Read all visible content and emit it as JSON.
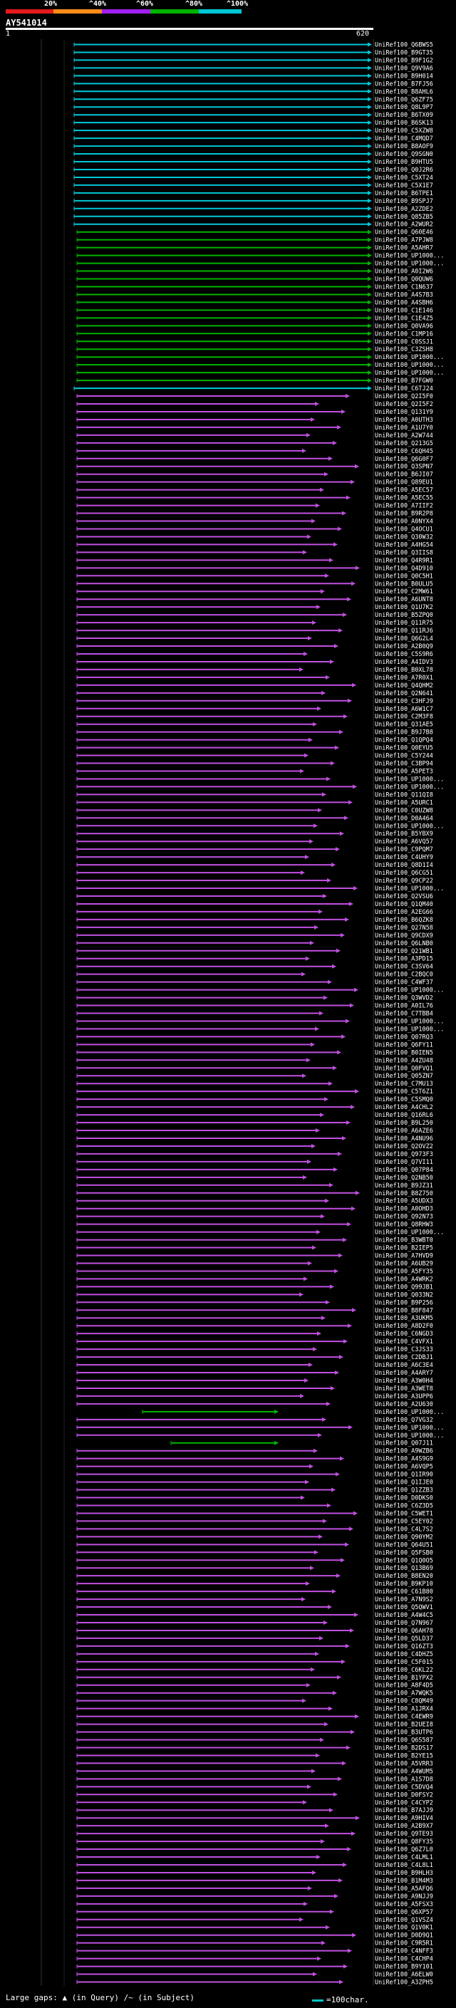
{
  "scale_labels": [
    "20%",
    "^40%",
    "^60%",
    "^80%",
    "^100%"
  ],
  "scale_colors": {
    "red": "#e41a1c",
    "orange": "#ff8c1a",
    "purple": "#a020f0",
    "green": "#00b400",
    "cyan": "#00c8d8"
  },
  "query": {
    "id": "AY541014",
    "start": "1",
    "end": "620"
  },
  "hits": [
    {
      "name": "UniRef100_Q6BWS5",
      "color": "cyan"
    },
    {
      "name": "UniRef100_B9GT35",
      "color": "cyan"
    },
    {
      "name": "UniRef100_B9F1G2",
      "color": "cyan"
    },
    {
      "name": "UniRef100_Q9V9A6",
      "color": "cyan"
    },
    {
      "name": "UniRef100_B9H014",
      "color": "cyan"
    },
    {
      "name": "UniRef100_B7FJ56",
      "color": "cyan"
    },
    {
      "name": "UniRef100_B8AHL6",
      "color": "cyan"
    },
    {
      "name": "UniRef100_Q6ZF75",
      "color": "cyan"
    },
    {
      "name": "UniRef100_Q8L9P7",
      "color": "cyan"
    },
    {
      "name": "UniRef100_B6TX09",
      "color": "cyan"
    },
    {
      "name": "UniRef100_B6SK13",
      "color": "cyan"
    },
    {
      "name": "UniRef100_C5XZW8",
      "color": "cyan"
    },
    {
      "name": "UniRef100_C4MQD7",
      "color": "cyan"
    },
    {
      "name": "UniRef100_B8AOF9",
      "color": "cyan"
    },
    {
      "name": "UniRef100_Q9SGN0",
      "color": "cyan"
    },
    {
      "name": "UniRef100_B9HTU5",
      "color": "cyan"
    },
    {
      "name": "UniRef100_Q0J2R6",
      "color": "cyan"
    },
    {
      "name": "UniRef100_C5XT24",
      "color": "cyan"
    },
    {
      "name": "UniRef100_C5X1E7",
      "color": "cyan"
    },
    {
      "name": "UniRef100_B6TPE1",
      "color": "cyan"
    },
    {
      "name": "UniRef100_B9SPJ7",
      "color": "cyan"
    },
    {
      "name": "UniRef100_A2ZDE2",
      "color": "cyan"
    },
    {
      "name": "UniRef100_Q85ZB5",
      "color": "cyan"
    },
    {
      "name": "UniRef100_A2WUR2",
      "color": "cyan"
    },
    {
      "name": "UniRef100_Q60E46",
      "color": "green"
    },
    {
      "name": "UniRef100_A7PJW8",
      "color": "green"
    },
    {
      "name": "UniRef100_A5AHR7",
      "color": "green"
    },
    {
      "name": "UniRef100_UP1000...",
      "color": "green"
    },
    {
      "name": "UniRef100_UP1000...",
      "color": "green"
    },
    {
      "name": "UniRef100_A0I2W6",
      "color": "green"
    },
    {
      "name": "UniRef100_Q0QUW6",
      "color": "green"
    },
    {
      "name": "UniRef100_C1N637",
      "color": "green"
    },
    {
      "name": "UniRef100_A4S7B3",
      "color": "green"
    },
    {
      "name": "UniRef100_A4SBH6",
      "color": "green"
    },
    {
      "name": "UniRef100_C1E146",
      "color": "green"
    },
    {
      "name": "UniRef100_C1E4Z5",
      "color": "green"
    },
    {
      "name": "UniRef100_Q0VA96",
      "color": "green"
    },
    {
      "name": "UniRef100_C1MP16",
      "color": "green"
    },
    {
      "name": "UniRef100_C0SSJ1",
      "color": "green"
    },
    {
      "name": "UniRef100_C3ZSH8",
      "color": "green"
    },
    {
      "name": "UniRef100_UP1000...",
      "color": "green"
    },
    {
      "name": "UniRef100_UP1000...",
      "color": "green"
    },
    {
      "name": "UniRef100_UP1000...",
      "color": "green"
    },
    {
      "name": "UniRef100_B7FGW0",
      "color": "green"
    },
    {
      "name": "UniRef100_C6TJ24",
      "color": "cyan"
    },
    {
      "name": "UniRef100_Q2I5F0",
      "color": "purple"
    },
    {
      "name": "UniRef100_Q2I5F2",
      "color": "purple"
    },
    {
      "name": "UniRef100_Q131Y9",
      "color": "purple"
    },
    {
      "name": "UniRef100_A0UTH3",
      "color": "purple"
    },
    {
      "name": "UniRef100_A1U7Y0",
      "color": "purple"
    },
    {
      "name": "UniRef100_A2W744",
      "color": "purple"
    },
    {
      "name": "UniRef100_Q213G5",
      "color": "purple"
    },
    {
      "name": "UniRef100_C6QH45",
      "color": "purple"
    },
    {
      "name": "UniRef100_Q6G0F7",
      "color": "purple"
    },
    {
      "name": "UniRef100_Q3SPN7",
      "color": "purple"
    },
    {
      "name": "UniRef100_B6JI07",
      "color": "purple"
    },
    {
      "name": "UniRef100_Q89EU1",
      "color": "purple"
    },
    {
      "name": "UniRef100_A5EC57",
      "color": "purple"
    },
    {
      "name": "UniRef100_A5EC55",
      "color": "purple"
    },
    {
      "name": "UniRef100_A7IIF2",
      "color": "purple"
    },
    {
      "name": "UniRef100_B9R2P8",
      "color": "purple"
    },
    {
      "name": "UniRef100_A0NYX4",
      "color": "purple"
    },
    {
      "name": "UniRef100_Q4OCU1",
      "color": "purple"
    },
    {
      "name": "UniRef100_Q30W32",
      "color": "purple"
    },
    {
      "name": "UniRef100_A4HG54",
      "color": "purple"
    },
    {
      "name": "UniRef100_Q3IIS8",
      "color": "purple"
    },
    {
      "name": "UniRef100_Q4R9R1",
      "color": "purple"
    },
    {
      "name": "UniRef100_Q4D910",
      "color": "purple"
    },
    {
      "name": "UniRef100_Q0C5H1",
      "color": "purple"
    },
    {
      "name": "UniRef100_B0ULU5",
      "color": "purple"
    },
    {
      "name": "UniRef100_C2MW61",
      "color": "purple"
    },
    {
      "name": "UniRef100_A6UNT8",
      "color": "purple"
    },
    {
      "name": "UniRef100_Q1U7K2",
      "color": "purple"
    },
    {
      "name": "UniRef100_B5ZPQ0",
      "color": "purple"
    },
    {
      "name": "UniRef100_Q11R75",
      "color": "purple"
    },
    {
      "name": "UniRef100_Q11RJ6",
      "color": "purple"
    },
    {
      "name": "UniRef100_Q6G2L4",
      "color": "purple"
    },
    {
      "name": "UniRef100_A2B0Q9",
      "color": "purple"
    },
    {
      "name": "UniRef100_C5S9R6",
      "color": "purple"
    },
    {
      "name": "UniRef100_A4IDV3",
      "color": "purple"
    },
    {
      "name": "UniRef100_B0XL78",
      "color": "purple"
    },
    {
      "name": "UniRef100_A7R0X1",
      "color": "purple"
    },
    {
      "name": "UniRef100_Q4QHM2",
      "color": "purple"
    },
    {
      "name": "UniRef100_Q2N641",
      "color": "purple"
    },
    {
      "name": "UniRef100_C3HFJ9",
      "color": "purple"
    },
    {
      "name": "UniRef100_A6W1C7",
      "color": "purple"
    },
    {
      "name": "UniRef100_C2M3F8",
      "color": "purple"
    },
    {
      "name": "UniRef100_Q31AE5",
      "color": "purple"
    },
    {
      "name": "UniRef100_B9J7B8",
      "color": "purple"
    },
    {
      "name": "UniRef100_Q1QPQ4",
      "color": "purple"
    },
    {
      "name": "UniRef100_Q0EYU5",
      "color": "purple"
    },
    {
      "name": "UniRef100_C5Y244",
      "color": "purple"
    },
    {
      "name": "UniRef100_C3BP94",
      "color": "purple"
    },
    {
      "name": "UniRef100_A5PET3",
      "color": "purple"
    },
    {
      "name": "UniRef100_UP1000...",
      "color": "purple"
    },
    {
      "name": "UniRef100_UP1000...",
      "color": "purple"
    },
    {
      "name": "UniRef100_Q11QI8",
      "color": "purple"
    },
    {
      "name": "UniRef100_A5URC1",
      "color": "purple"
    },
    {
      "name": "UniRef100_C0UZW8",
      "color": "purple"
    },
    {
      "name": "UniRef100_D0A464",
      "color": "purple"
    },
    {
      "name": "UniRef100_UP1000...",
      "color": "purple"
    },
    {
      "name": "UniRef100_B5YBX9",
      "color": "purple"
    },
    {
      "name": "UniRef100_A6VQ57",
      "color": "purple"
    },
    {
      "name": "UniRef100_C9PQM7",
      "color": "purple"
    },
    {
      "name": "UniRef100_C4UHY9",
      "color": "purple"
    },
    {
      "name": "UniRef100_Q8D1I4",
      "color": "purple"
    },
    {
      "name": "UniRef100_Q6CG51",
      "color": "purple"
    },
    {
      "name": "UniRef100_Q9CP22",
      "color": "purple"
    },
    {
      "name": "UniRef100_UP1000...",
      "color": "purple"
    },
    {
      "name": "UniRef100_Q2VSU6",
      "color": "purple"
    },
    {
      "name": "UniRef100_Q1QM40",
      "color": "purple"
    },
    {
      "name": "UniRef100_A2EG66",
      "color": "purple"
    },
    {
      "name": "UniRef100_B6QZK8",
      "color": "purple"
    },
    {
      "name": "UniRef100_Q27N58",
      "color": "purple"
    },
    {
      "name": "UniRef100_Q9CDX9",
      "color": "purple"
    },
    {
      "name": "UniRef100_Q6LNB0",
      "color": "purple"
    },
    {
      "name": "UniRef100_Q21WB1",
      "color": "purple"
    },
    {
      "name": "UniRef100_A3PD15",
      "color": "purple"
    },
    {
      "name": "UniRef100_C3SV64",
      "color": "purple"
    },
    {
      "name": "UniRef100_C2BQC0",
      "color": "purple"
    },
    {
      "name": "UniRef100_C4WF37",
      "color": "purple"
    },
    {
      "name": "UniRef100_UP1000...",
      "color": "purple"
    },
    {
      "name": "UniRef100_Q3WVD2",
      "color": "purple"
    },
    {
      "name": "UniRef100_A0IL76",
      "color": "purple"
    },
    {
      "name": "UniRef100_C7TBB4",
      "color": "purple"
    },
    {
      "name": "UniRef100_UP1000...",
      "color": "purple"
    },
    {
      "name": "UniRef100_UP1000...",
      "color": "purple"
    },
    {
      "name": "UniRef100_Q07RQ3",
      "color": "purple"
    },
    {
      "name": "UniRef100_Q6FY11",
      "color": "purple"
    },
    {
      "name": "UniRef100_B0IEN5",
      "color": "purple"
    },
    {
      "name": "UniRef100_A4ZU48",
      "color": "purple"
    },
    {
      "name": "UniRef100_Q0FVQ1",
      "color": "purple"
    },
    {
      "name": "UniRef100_Q05ZN7",
      "color": "purple"
    },
    {
      "name": "UniRef100_C7MU13",
      "color": "purple"
    },
    {
      "name": "UniRef100_C5T6Z1",
      "color": "purple"
    },
    {
      "name": "UniRef100_C5SMQ0",
      "color": "purple"
    },
    {
      "name": "UniRef100_A4CHL2",
      "color": "purple"
    },
    {
      "name": "UniRef100_Q16RL6",
      "color": "purple"
    },
    {
      "name": "UniRef100_B9L250",
      "color": "purple"
    },
    {
      "name": "UniRef100_A6AZE6",
      "color": "purple"
    },
    {
      "name": "UniRef100_A4NU96",
      "color": "purple"
    },
    {
      "name": "UniRef100_Q2OVZ2",
      "color": "purple"
    },
    {
      "name": "UniRef100_Q973F3",
      "color": "purple"
    },
    {
      "name": "UniRef100_Q7VI11",
      "color": "purple"
    },
    {
      "name": "UniRef100_Q07P84",
      "color": "purple"
    },
    {
      "name": "UniRef100_Q2NB50",
      "color": "purple"
    },
    {
      "name": "UniRef100_B9JZ31",
      "color": "purple"
    },
    {
      "name": "UniRef100_B8Z750",
      "color": "purple"
    },
    {
      "name": "UniRef100_A5UDX3",
      "color": "purple"
    },
    {
      "name": "UniRef100_A0OHD3",
      "color": "purple"
    },
    {
      "name": "UniRef100_Q92N73",
      "color": "purple"
    },
    {
      "name": "UniRef100_Q8RHW3",
      "color": "purple"
    },
    {
      "name": "UniRef100_UP1000...",
      "color": "purple"
    },
    {
      "name": "UniRef100_B3WBT0",
      "color": "purple"
    },
    {
      "name": "UniRef100_B2IEP5",
      "color": "purple"
    },
    {
      "name": "UniRef100_A7HVD9",
      "color": "purple"
    },
    {
      "name": "UniRef100_A6UB29",
      "color": "purple"
    },
    {
      "name": "UniRef100_A5FY35",
      "color": "purple"
    },
    {
      "name": "UniRef100_A4WRK2",
      "color": "purple"
    },
    {
      "name": "UniRef100_Q99JB1",
      "color": "purple"
    },
    {
      "name": "UniRef100_Q033N2",
      "color": "purple"
    },
    {
      "name": "UniRef100_B9P256",
      "color": "purple"
    },
    {
      "name": "UniRef100_B8F847",
      "color": "purple"
    },
    {
      "name": "UniRef100_A3UKM5",
      "color": "purple"
    },
    {
      "name": "UniRef100_A8D2F0",
      "color": "purple"
    },
    {
      "name": "UniRef100_C6NGD3",
      "color": "purple"
    },
    {
      "name": "UniRef100_C4VFX1",
      "color": "purple"
    },
    {
      "name": "UniRef100_C3JS33",
      "color": "purple"
    },
    {
      "name": "UniRef100_C2DBJ1",
      "color": "purple"
    },
    {
      "name": "UniRef100_A6C3E4",
      "color": "purple"
    },
    {
      "name": "UniRef100_A4ARY7",
      "color": "purple"
    },
    {
      "name": "UniRef100_A3W0H4",
      "color": "purple"
    },
    {
      "name": "UniRef100_A3WET8",
      "color": "purple"
    },
    {
      "name": "UniRef100_A3UPP6",
      "color": "purple"
    },
    {
      "name": "UniRef100_A2U630",
      "color": "purple"
    },
    {
      "name": "UniRef100_UP1000...",
      "color": "green"
    },
    {
      "name": "UniRef100_Q7VG32",
      "color": "purple"
    },
    {
      "name": "UniRef100_UP1000...",
      "color": "purple"
    },
    {
      "name": "UniRef100_UP1000...",
      "color": "purple"
    },
    {
      "name": "UniRef100_Q07J11",
      "color": "green"
    },
    {
      "name": "UniRef100_A9WZB6",
      "color": "purple"
    },
    {
      "name": "UniRef100_A4S9G9",
      "color": "purple"
    },
    {
      "name": "UniRef100_A6VQP5",
      "color": "purple"
    },
    {
      "name": "UniRef100_Q1IR90",
      "color": "purple"
    },
    {
      "name": "UniRef100_Q1IJE0",
      "color": "purple"
    },
    {
      "name": "UniRef100_Q1ZZB3",
      "color": "purple"
    },
    {
      "name": "UniRef100_D0DKS0",
      "color": "purple"
    },
    {
      "name": "UniRef100_C6Z3D5",
      "color": "purple"
    },
    {
      "name": "UniRef100_C5WET1",
      "color": "purple"
    },
    {
      "name": "UniRef100_C5EY02",
      "color": "purple"
    },
    {
      "name": "UniRef100_C4L7S2",
      "color": "purple"
    },
    {
      "name": "UniRef100_Q90YM2",
      "color": "purple"
    },
    {
      "name": "UniRef100_Q64U51",
      "color": "purple"
    },
    {
      "name": "UniRef100_Q5FSB0",
      "color": "purple"
    },
    {
      "name": "UniRef100_Q1Q0O5",
      "color": "purple"
    },
    {
      "name": "UniRef100_Q13B69",
      "color": "purple"
    },
    {
      "name": "UniRef100_B8EN20",
      "color": "purple"
    },
    {
      "name": "UniRef100_B9KP10",
      "color": "purple"
    },
    {
      "name": "UniRef100_C61B80",
      "color": "purple"
    },
    {
      "name": "UniRef100_A7N9S2",
      "color": "purple"
    },
    {
      "name": "UniRef100_Q5QWV1",
      "color": "purple"
    },
    {
      "name": "UniRef100_A4W4C5",
      "color": "purple"
    },
    {
      "name": "UniRef100_Q7N967",
      "color": "purple"
    },
    {
      "name": "UniRef100_Q6AH78",
      "color": "purple"
    },
    {
      "name": "UniRef100_Q5LD37",
      "color": "purple"
    },
    {
      "name": "UniRef100_Q16ZT3",
      "color": "purple"
    },
    {
      "name": "UniRef100_C4DHZ5",
      "color": "purple"
    },
    {
      "name": "UniRef100_C5F015",
      "color": "purple"
    },
    {
      "name": "UniRef100_C6KL22",
      "color": "purple"
    },
    {
      "name": "UniRef100_B1YPX2",
      "color": "purple"
    },
    {
      "name": "UniRef100_A8F4D5",
      "color": "purple"
    },
    {
      "name": "UniRef100_A7WQK5",
      "color": "purple"
    },
    {
      "name": "UniRef100_C8QM49",
      "color": "purple"
    },
    {
      "name": "UniRef100_A1JRX4",
      "color": "purple"
    },
    {
      "name": "UniRef100_C4EWR9",
      "color": "purple"
    },
    {
      "name": "UniRef100_B2UEI8",
      "color": "purple"
    },
    {
      "name": "UniRef100_B3UTP6",
      "color": "purple"
    },
    {
      "name": "UniRef100_Q6S587",
      "color": "purple"
    },
    {
      "name": "UniRef100_B2DS17",
      "color": "purple"
    },
    {
      "name": "UniRef100_B2YE15",
      "color": "purple"
    },
    {
      "name": "UniRef100_A5VRR3",
      "color": "purple"
    },
    {
      "name": "UniRef100_A4WUM5",
      "color": "purple"
    },
    {
      "name": "UniRef100_A1S7D8",
      "color": "purple"
    },
    {
      "name": "UniRef100_C5DVQ4",
      "color": "purple"
    },
    {
      "name": "UniRef100_D0FSY2",
      "color": "purple"
    },
    {
      "name": "UniRef100_C4CYP2",
      "color": "purple"
    },
    {
      "name": "UniRef100_B7AJJ9",
      "color": "purple"
    },
    {
      "name": "UniRef100_A9HIV4",
      "color": "purple"
    },
    {
      "name": "UniRef100_A2B9X7",
      "color": "purple"
    },
    {
      "name": "UniRef100_Q9TE93",
      "color": "purple"
    },
    {
      "name": "UniRef100_Q8FY35",
      "color": "purple"
    },
    {
      "name": "UniRef100_Q6Z7L0",
      "color": "purple"
    },
    {
      "name": "UniRef100_C4LML1",
      "color": "purple"
    },
    {
      "name": "UniRef100_C4L8L1",
      "color": "purple"
    },
    {
      "name": "UniRef100_B9HLH3",
      "color": "purple"
    },
    {
      "name": "UniRef100_B1M4M3",
      "color": "purple"
    },
    {
      "name": "UniRef100_A5AFQ6",
      "color": "purple"
    },
    {
      "name": "UniRef100_A9NJJ9",
      "color": "purple"
    },
    {
      "name": "UniRef100_A5FSX3",
      "color": "purple"
    },
    {
      "name": "UniRef100_Q6XP57",
      "color": "purple"
    },
    {
      "name": "UniRef100_Q1VSZ4",
      "color": "purple"
    },
    {
      "name": "UniRef100_Q1V0K1",
      "color": "purple"
    },
    {
      "name": "UniRef100_D0D9Q1",
      "color": "purple"
    },
    {
      "name": "UniRef100_C9R5R1",
      "color": "purple"
    },
    {
      "name": "UniRef100_C4NFF3",
      "color": "purple"
    },
    {
      "name": "UniRef100_C4CHP4",
      "color": "purple"
    },
    {
      "name": "UniRef100_B9Y101",
      "color": "purple"
    },
    {
      "name": "UniRef100_A6ELW0",
      "color": "purple"
    },
    {
      "name": "UniRef100_A3ZPH5",
      "color": "purple"
    }
  ],
  "footer": {
    "large_gaps": "Large gaps:",
    "in_query": "(in Query)",
    "in_subject": "(in Subject)",
    "scale": "=100char."
  }
}
